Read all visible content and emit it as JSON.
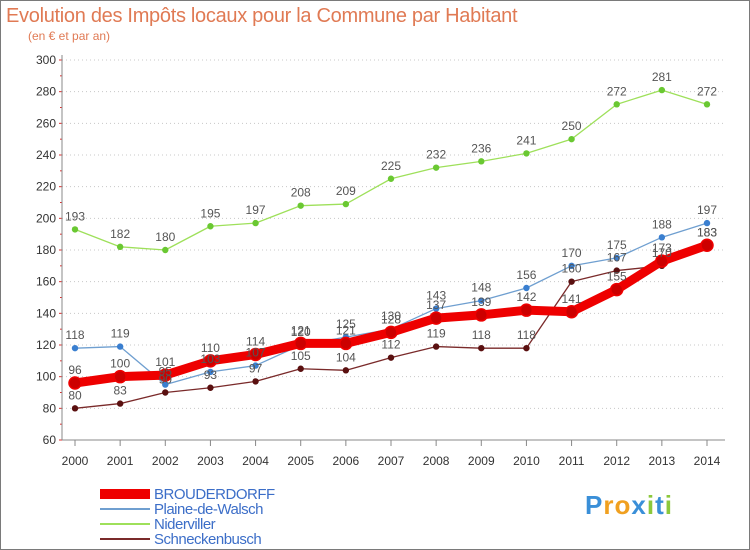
{
  "header": {
    "title": "Evolution des Impôts locaux pour la Commune par Habitant",
    "subtitle": "(en € et par an)"
  },
  "chart_data": {
    "type": "line",
    "x": [
      2000,
      2001,
      2002,
      2003,
      2004,
      2005,
      2006,
      2007,
      2008,
      2009,
      2010,
      2011,
      2012,
      2013,
      2014
    ],
    "ylim": [
      60,
      300
    ],
    "yticks": [
      60,
      80,
      100,
      120,
      140,
      160,
      180,
      200,
      220,
      240,
      260,
      280,
      300
    ],
    "grid": "horizontal dotted",
    "legend_position": "bottom-left",
    "series": [
      {
        "name": "BROUDERDORFF",
        "color": "#ee0000",
        "marker_color": "#cc0000",
        "label_color": "#555555",
        "values": [
          96,
          100,
          101,
          110,
          114,
          121,
          121,
          128,
          137,
          139,
          142,
          141,
          155,
          173,
          183
        ],
        "labels": [
          "96",
          "100",
          "101",
          "110",
          "114",
          "121",
          "121",
          "128",
          "137",
          "139",
          "142",
          "141",
          "155",
          "173",
          "183"
        ]
      },
      {
        "name": "Plaine-de-Walsch",
        "color": "#6f9fd0",
        "marker_color": "#3a7fd0",
        "label_color": "#555555",
        "values": [
          118,
          119,
          95,
          103,
          107,
          120,
          125,
          130,
          143,
          148,
          156,
          170,
          175,
          188,
          197
        ],
        "labels": [
          "118",
          "119",
          "95",
          "103",
          "107",
          "120",
          "125",
          "130",
          "143",
          "148",
          "156",
          "170",
          "175",
          "188",
          "197"
        ]
      },
      {
        "name": "Niderviller",
        "color": "#9ee05a",
        "marker_color": "#6ac832",
        "label_color": "#555555",
        "values": [
          193,
          182,
          180,
          195,
          197,
          208,
          209,
          225,
          232,
          236,
          241,
          250,
          272,
          281,
          272
        ],
        "labels": [
          "193",
          "182",
          "180",
          "195",
          "197",
          "208",
          "209",
          "225",
          "232",
          "236",
          "241",
          "250",
          "272",
          "281",
          "272"
        ]
      },
      {
        "name": "Schneckenbusch",
        "color": "#7a2a2a",
        "marker_color": "#5a1010",
        "label_color": "#555555",
        "values": [
          80,
          83,
          90,
          93,
          97,
          105,
          104,
          112,
          119,
          118,
          118,
          160,
          167,
          170,
          183
        ],
        "labels": [
          "80",
          "83",
          "90",
          "93",
          "97",
          "105",
          "104",
          "112",
          "119",
          "118",
          "118",
          "160",
          "167",
          "170",
          "183"
        ]
      }
    ]
  },
  "legend": {
    "items": [
      {
        "label": "BROUDERDORFF",
        "color": "#ee0000"
      },
      {
        "label": "Plaine-de-Walsch",
        "color": "#6f9fd0"
      },
      {
        "label": "Niderviller",
        "color": "#9ee05a"
      },
      {
        "label": "Schneckenbusch",
        "color": "#7a2a2a"
      }
    ]
  },
  "logo": {
    "letters": [
      "P",
      "r",
      "o",
      "x",
      "i",
      "t",
      "i"
    ],
    "colors": [
      "#3a8fd8",
      "#f0a020",
      "#f0a020",
      "#3a8fd8",
      "#8cc83c",
      "#3a8fd8",
      "#8cc83c"
    ]
  }
}
